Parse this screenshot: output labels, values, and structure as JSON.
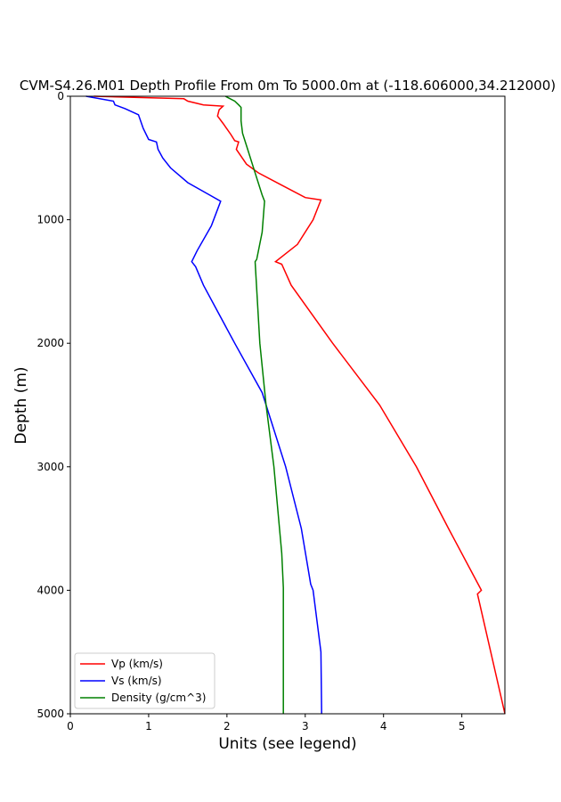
{
  "chart_data": {
    "type": "line",
    "title": "CVM-S4.26.M01 Depth Profile From 0m To 5000.0m at (-118.606000,34.212000)",
    "xlabel": "Units (see legend)",
    "ylabel": "Depth (m)",
    "xlim": [
      0,
      5.55
    ],
    "ylim": [
      5000,
      0
    ],
    "y_inverted": true,
    "xticks": [
      "0",
      "1",
      "2",
      "3",
      "4",
      "5"
    ],
    "yticks": [
      "0",
      "1000",
      "2000",
      "3000",
      "4000",
      "5000"
    ],
    "grid": false,
    "legend_position": "lower-left",
    "series": [
      {
        "name": "Vp (km/s)",
        "color": "#ff0000",
        "points": [
          [
            0.3,
            0
          ],
          [
            1.45,
            20
          ],
          [
            1.5,
            40
          ],
          [
            1.7,
            70
          ],
          [
            1.95,
            80
          ],
          [
            1.9,
            110
          ],
          [
            1.88,
            160
          ],
          [
            1.95,
            220
          ],
          [
            2.05,
            310
          ],
          [
            2.1,
            360
          ],
          [
            2.15,
            370
          ],
          [
            2.12,
            430
          ],
          [
            2.25,
            550
          ],
          [
            2.4,
            620
          ],
          [
            2.7,
            720
          ],
          [
            3.0,
            820
          ],
          [
            3.2,
            840
          ],
          [
            3.1,
            1000
          ],
          [
            2.9,
            1200
          ],
          [
            2.62,
            1340
          ],
          [
            2.7,
            1360
          ],
          [
            2.82,
            1530
          ],
          [
            3.35,
            2000
          ],
          [
            3.95,
            2500
          ],
          [
            4.42,
            3000
          ],
          [
            4.83,
            3500
          ],
          [
            5.25,
            4000
          ],
          [
            5.2,
            4030
          ],
          [
            5.55,
            5000
          ]
        ]
      },
      {
        "name": "Vs (km/s)",
        "color": "#0000ff",
        "points": [
          [
            0.2,
            0
          ],
          [
            0.55,
            40
          ],
          [
            0.57,
            70
          ],
          [
            0.7,
            100
          ],
          [
            0.87,
            150
          ],
          [
            0.93,
            260
          ],
          [
            1.0,
            350
          ],
          [
            1.1,
            370
          ],
          [
            1.12,
            430
          ],
          [
            1.18,
            500
          ],
          [
            1.28,
            580
          ],
          [
            1.5,
            700
          ],
          [
            1.78,
            800
          ],
          [
            1.92,
            850
          ],
          [
            1.8,
            1050
          ],
          [
            1.62,
            1250
          ],
          [
            1.55,
            1340
          ],
          [
            1.6,
            1380
          ],
          [
            1.7,
            1530
          ],
          [
            2.1,
            2000
          ],
          [
            2.45,
            2400
          ],
          [
            2.75,
            3000
          ],
          [
            2.95,
            3500
          ],
          [
            3.07,
            3950
          ],
          [
            3.1,
            4000
          ],
          [
            3.2,
            4500
          ],
          [
            3.21,
            5000
          ]
        ]
      },
      {
        "name": "Density (g/cm^3)",
        "color": "#008000",
        "points": [
          [
            1.98,
            0
          ],
          [
            2.1,
            40
          ],
          [
            2.15,
            70
          ],
          [
            2.18,
            90
          ],
          [
            2.18,
            130
          ],
          [
            2.18,
            200
          ],
          [
            2.2,
            300
          ],
          [
            2.25,
            400
          ],
          [
            2.35,
            600
          ],
          [
            2.45,
            800
          ],
          [
            2.48,
            850
          ],
          [
            2.45,
            1100
          ],
          [
            2.38,
            1320
          ],
          [
            2.36,
            1340
          ],
          [
            2.42,
            2000
          ],
          [
            2.5,
            2500
          ],
          [
            2.6,
            3000
          ],
          [
            2.7,
            3700
          ],
          [
            2.72,
            3980
          ],
          [
            2.72,
            4000
          ],
          [
            2.72,
            5000
          ]
        ]
      }
    ]
  }
}
